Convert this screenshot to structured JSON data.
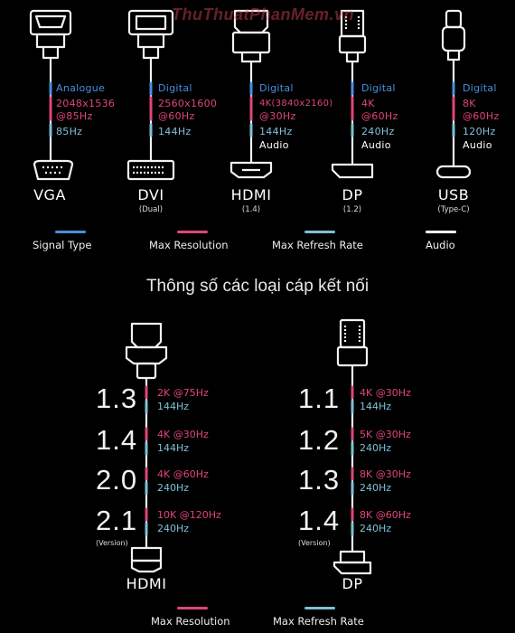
{
  "watermark": "ThuThuatPhanMem.vn",
  "colors": {
    "signal_type": "#4a8fe0",
    "max_resolution": "#e0457b",
    "max_refresh_rate": "#7fc0d8",
    "audio": "#ffffff"
  },
  "connectors": [
    {
      "icon": "vga-connector-icon",
      "signal": "Analogue",
      "resolution": [
        "2048x1536",
        "@85Hz"
      ],
      "refresh": "85Hz",
      "audio": "",
      "name": "VGA",
      "subtitle": ""
    },
    {
      "icon": "dvi-connector-icon",
      "signal": "Digital",
      "resolution": [
        "2560x1600",
        "@60Hz"
      ],
      "refresh": "144Hz",
      "audio": "",
      "name": "DVI",
      "subtitle": "(Dual)"
    },
    {
      "icon": "hdmi-connector-icon",
      "signal": "Digital",
      "resolution": [
        "4K(3840x2160)",
        "@30Hz"
      ],
      "refresh": "144Hz",
      "audio": "Audio",
      "name": "HDMI",
      "subtitle": "(1.4)"
    },
    {
      "icon": "displayport-connector-icon",
      "signal": "Digital",
      "resolution": [
        "4K",
        "@60Hz"
      ],
      "refresh": "240Hz",
      "audio": "Audio",
      "name": "DP",
      "subtitle": "(1.2)"
    },
    {
      "icon": "usb-c-connector-icon",
      "signal": "Digital",
      "resolution": [
        "8K",
        "@60Hz"
      ],
      "refresh": "120Hz",
      "audio": "Audio",
      "name": "USB",
      "subtitle": "(Type-C)"
    }
  ],
  "legend_top": [
    "Signal Type",
    "Max Resolution",
    "Max Refresh Rate",
    "Audio"
  ],
  "caption": "Thông số các loại cáp kết nối",
  "hdmi_versions": {
    "name": "HDMI",
    "version_tag": "(Version)",
    "rows": [
      {
        "version": "1.3",
        "resolution": "2K @75Hz",
        "refresh": "144Hz"
      },
      {
        "version": "1.4",
        "resolution": "4K @30Hz",
        "refresh": "144Hz"
      },
      {
        "version": "2.0",
        "resolution": "4K @60Hz",
        "refresh": "240Hz"
      },
      {
        "version": "2.1",
        "resolution": "10K @120Hz",
        "refresh": "240Hz"
      }
    ]
  },
  "dp_versions": {
    "name": "DP",
    "version_tag": "(Version)",
    "rows": [
      {
        "version": "1.1",
        "resolution": "4K @30Hz",
        "refresh": "144Hz"
      },
      {
        "version": "1.2",
        "resolution": "5K @30Hz",
        "refresh": "240Hz"
      },
      {
        "version": "1.3",
        "resolution": "8K @30Hz",
        "refresh": "240Hz"
      },
      {
        "version": "1.4",
        "resolution": "8K @60Hz",
        "refresh": "240Hz"
      }
    ]
  },
  "legend_bottom": [
    "Max Resolution",
    "Max Refresh Rate"
  ]
}
